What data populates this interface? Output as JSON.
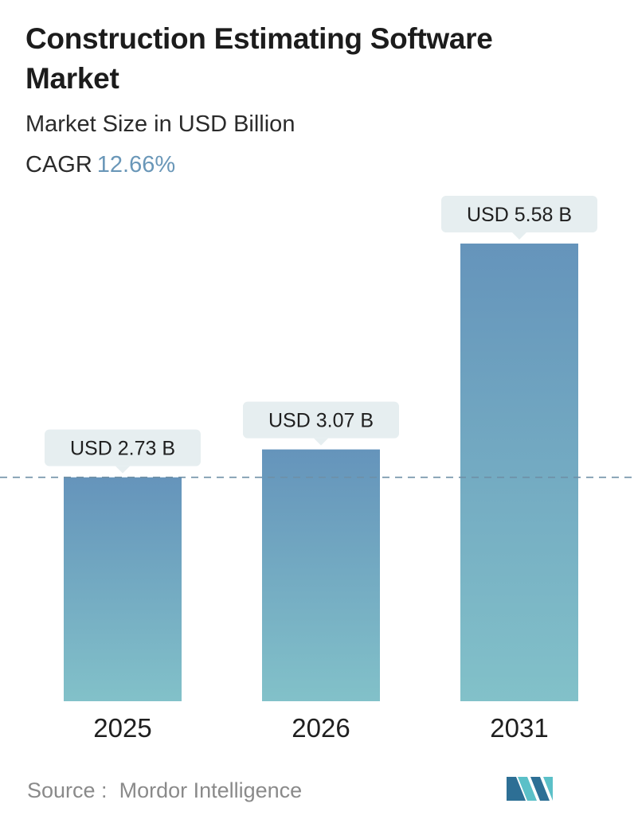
{
  "header": {
    "title": "Construction Estimating Software Market",
    "subtitle": "Market Size in USD Billion",
    "cagr_label": "CAGR",
    "cagr_value": "12.66%"
  },
  "footer": {
    "source_label": "Source :",
    "source_name": "Mordor Intelligence",
    "logo_icon": "mordor-intelligence-logo"
  },
  "colors": {
    "bar_top": "#6594bb",
    "bar_bottom": "#82c1c9",
    "label_bg": "#e6eef0",
    "dashed_line": "#6e8fa6",
    "accent": "#6a97b8"
  },
  "chart_data": {
    "type": "bar",
    "categories": [
      "2025",
      "2026",
      "2031"
    ],
    "values": [
      2.73,
      3.07,
      5.58
    ],
    "data_labels": [
      "USD 2.73 B",
      "USD 3.07 B",
      "USD 5.58 B"
    ],
    "title": "Construction Estimating Software Market",
    "subtitle": "Market Size in USD Billion",
    "xlabel": "",
    "ylabel": "",
    "ylim": [
      0,
      5.58
    ],
    "grid": false,
    "legend": "none",
    "reference_line": 2.73
  }
}
